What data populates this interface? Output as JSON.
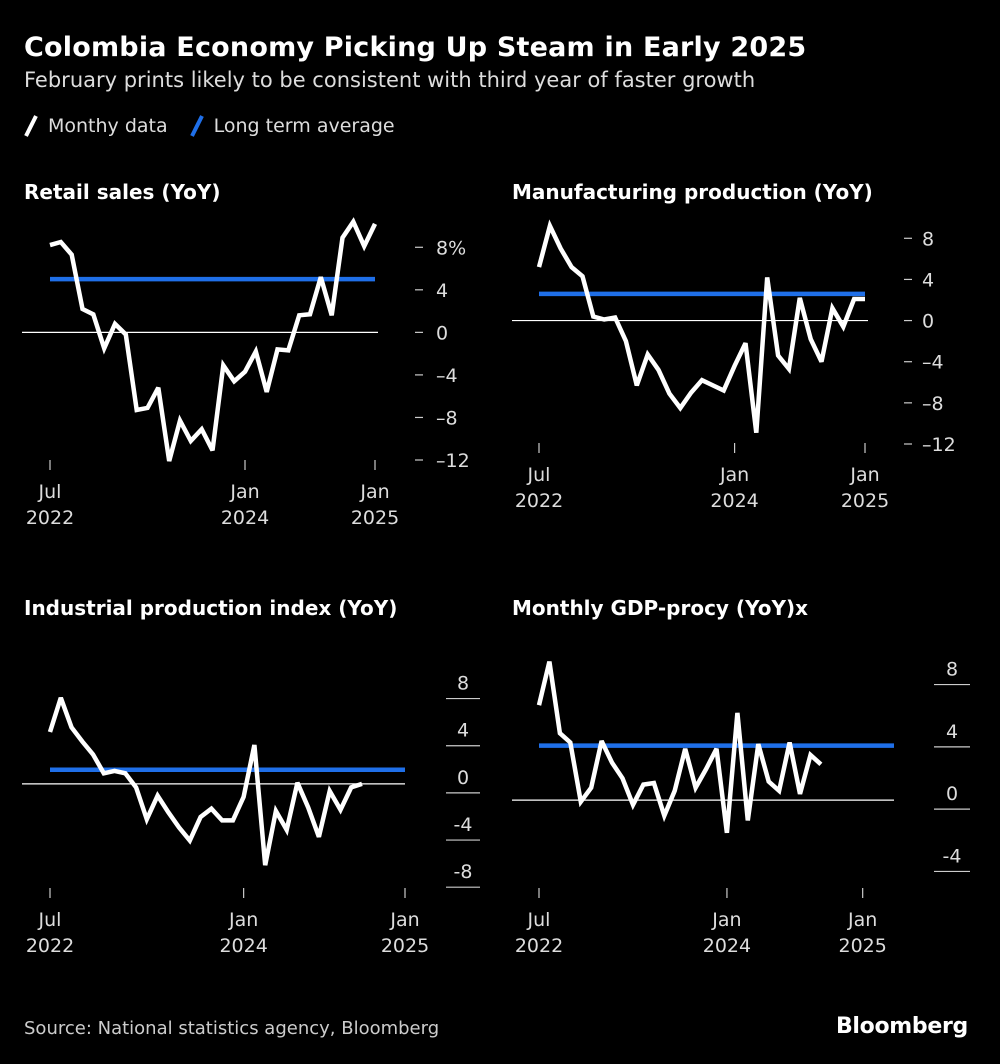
{
  "header": {
    "title": "Colombia Economy Picking Up Steam in Early 2025",
    "subtitle": "February prints likely to be consistent with third year of faster growth"
  },
  "legend": {
    "monthly_label": "Monthy data",
    "average_label": "Long term average"
  },
  "colors": {
    "background": "#000000",
    "monthly": "#ffffff",
    "average": "#1f6fe8"
  },
  "chart_data": [
    {
      "type": "line",
      "title": "Retail sales (YoY)",
      "x_ticks": [
        {
          "line1": "Jul",
          "line2": "2022",
          "index": 0
        },
        {
          "line1": "Jan",
          "line2": "2024",
          "index": 18
        },
        {
          "line1": "Jan",
          "line2": "2025",
          "index": 30
        }
      ],
      "ylim": [
        -12,
        10
      ],
      "y_ticks": [
        {
          "value": 8,
          "label": "8%"
        },
        {
          "value": 4,
          "label": "4"
        },
        {
          "value": 0,
          "label": "0"
        },
        {
          "value": -4,
          "label": "–4"
        },
        {
          "value": -8,
          "label": "–8"
        },
        {
          "value": -12,
          "label": "–12"
        }
      ],
      "series": [
        {
          "name": "Monthy data",
          "values": [
            8.2,
            8.5,
            7.3,
            2.2,
            1.7,
            -1.5,
            0.8,
            -0.2,
            -7.3,
            -7.1,
            -5.2,
            -12.1,
            -8.3,
            -10.2,
            -9.1,
            -11.1,
            -3.1,
            -4.6,
            -3.7,
            -1.8,
            -5.6,
            -1.6,
            -1.7,
            1.6,
            1.7,
            5.2,
            1.6,
            8.9,
            10.4,
            8.1,
            10.2
          ]
        },
        {
          "name": "Long term average",
          "values": [
            5.0,
            5.0
          ]
        }
      ],
      "average_span": [
        0,
        31
      ]
    },
    {
      "type": "line",
      "title": "Manufacturing production (YoY)",
      "x_ticks": [
        {
          "line1": "Jul",
          "line2": "2022",
          "index": 0
        },
        {
          "line1": "Jan",
          "line2": "2024",
          "index": 18
        },
        {
          "line1": "Jan",
          "line2": "2025",
          "index": 30
        }
      ],
      "ylim": [
        -12,
        9
      ],
      "y_ticks": [
        {
          "value": 8,
          "label": "8"
        },
        {
          "value": 4,
          "label": "4"
        },
        {
          "value": 0,
          "label": "0"
        },
        {
          "value": -4,
          "label": "–4"
        },
        {
          "value": -8,
          "label": "–8"
        },
        {
          "value": -12,
          "label": "–12"
        }
      ],
      "series": [
        {
          "name": "Monthy data",
          "values": [
            5.2,
            9.2,
            7.0,
            5.2,
            4.3,
            0.4,
            0.1,
            0.3,
            -2.0,
            -6.3,
            -3.3,
            -4.8,
            -7.1,
            -8.5,
            -7.0,
            -5.8,
            -6.3,
            -6.8,
            -4.4,
            -2.2,
            -10.9,
            4.2,
            -3.4,
            -4.7,
            2.2,
            -1.8,
            -4.0,
            1.2,
            -0.6,
            2.1,
            2.1
          ]
        },
        {
          "name": "Long term average",
          "values": [
            2.6,
            2.6
          ]
        }
      ],
      "average_span": [
        0,
        31
      ]
    },
    {
      "type": "line",
      "title": "Industrial production index (YoY)",
      "x_ticks": [
        {
          "line1": "Jul",
          "line2": "2022",
          "index": 0
        },
        {
          "line1": "Jan",
          "line2": "2024",
          "index": 18
        },
        {
          "line1": "Jan",
          "line2": "2025",
          "index": 33
        }
      ],
      "ylim": [
        -9,
        10
      ],
      "y_ticks": [
        {
          "value": 8,
          "label": "8"
        },
        {
          "value": 4,
          "label": "4"
        },
        {
          "value": 0,
          "label": "0"
        },
        {
          "value": -4,
          "label": "-4"
        },
        {
          "value": -8,
          "label": "-8"
        }
      ],
      "series": [
        {
          "name": "Monthy data",
          "values": [
            4.4,
            7.3,
            4.8,
            3.6,
            2.5,
            0.9,
            1.1,
            0.9,
            -0.3,
            -3.0,
            -1.0,
            -2.4,
            -3.7,
            -4.8,
            -2.8,
            -2.1,
            -3.1,
            -3.1,
            -1.1,
            3.3,
            -6.9,
            -2.3,
            -3.9,
            0.1,
            -2.0,
            -4.5,
            -0.6,
            -2.2,
            -0.3,
            0.0
          ]
        },
        {
          "name": "Long term average",
          "values": [
            1.2,
            1.2
          ]
        }
      ],
      "average_span": [
        0,
        34
      ]
    },
    {
      "type": "line",
      "title": "Monthly GDP-procy (YoY)x",
      "x_ticks": [
        {
          "line1": "Jul",
          "line2": "2022",
          "index": 0
        },
        {
          "line1": "Jan",
          "line2": "2024",
          "index": 18
        },
        {
          "line1": "Jan",
          "line2": "2025",
          "index": 31
        }
      ],
      "ylim": [
        -5,
        9
      ],
      "y_ticks": [
        {
          "value": 8,
          "label": "8"
        },
        {
          "value": 4,
          "label": "4"
        },
        {
          "value": 0,
          "label": "0"
        },
        {
          "value": -4,
          "label": "-4"
        }
      ],
      "series": [
        {
          "name": "Monthy data",
          "values": [
            6.1,
            8.9,
            4.3,
            3.7,
            -0.1,
            0.8,
            3.8,
            2.4,
            1.4,
            -0.3,
            1.0,
            1.1,
            -1.0,
            0.6,
            3.3,
            0.8,
            2.0,
            3.3,
            -2.1,
            5.6,
            -1.3,
            3.6,
            1.2,
            0.6,
            3.7,
            0.4,
            2.9,
            2.3
          ]
        },
        {
          "name": "Long term average",
          "values": [
            3.5,
            3.5
          ]
        }
      ],
      "average_span": [
        0,
        35
      ]
    }
  ],
  "footer": {
    "source": "Source: National statistics agency, Bloomberg",
    "brand": "Bloomberg"
  }
}
